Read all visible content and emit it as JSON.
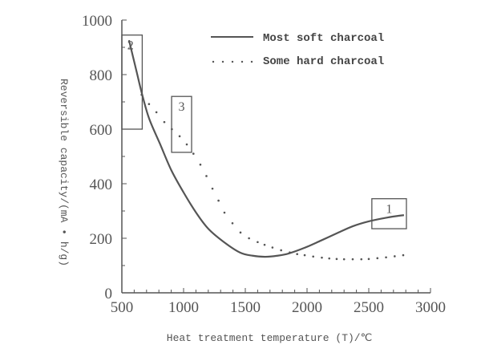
{
  "chart_data": {
    "type": "line",
    "title": "",
    "xlabel": "Heat treatment temperature (T)/℃",
    "ylabel": "Reversible capacity/(mA • h/g)",
    "xlim": [
      500,
      3000
    ],
    "ylim": [
      0,
      1000
    ],
    "x_ticks": [
      500,
      1000,
      1500,
      2000,
      2500,
      3000
    ],
    "y_ticks": [
      0,
      200,
      400,
      600,
      800,
      1000
    ],
    "x_tick_labels": [
      "500",
      "1000",
      "1500",
      "2000",
      "2500",
      "3000"
    ],
    "y_tick_labels": [
      "0",
      "200",
      "400",
      "600",
      "800",
      "1000"
    ],
    "x_minor_step": 100,
    "y_minor_step": 100,
    "grid": false,
    "legend_position": "top-right",
    "series": [
      {
        "name": "Most soft charcoal",
        "style": "solid",
        "x": [
          558,
          620,
          660,
          720,
          810,
          900,
          1000,
          1100,
          1200,
          1330,
          1460,
          1560,
          1660,
          1760,
          1850,
          1980,
          2110,
          2240,
          2370,
          2500,
          2650,
          2785
        ],
        "y": [
          926,
          810,
          735,
          640,
          545,
          450,
          368,
          295,
          235,
          185,
          147,
          136,
          132,
          136,
          144,
          165,
          191,
          218,
          244,
          262,
          276,
          285
        ]
      },
      {
        "name": "Some hard charcoal",
        "style": "dotted",
        "x": [
          660,
          720,
          780,
          844,
          905,
          968,
          1026,
          1080,
          1136,
          1185,
          1234,
          1283,
          1331,
          1396,
          1461,
          1530,
          1600,
          1656,
          1720,
          1790,
          1860,
          1920,
          1981,
          2050,
          2120,
          2180,
          2240,
          2300,
          2370,
          2440,
          2500,
          2570,
          2640,
          2710,
          2779
        ],
        "y": [
          726,
          692,
          662,
          626,
          600,
          574,
          544,
          510,
          470,
          428,
          382,
          338,
          294,
          255,
          221,
          200,
          186,
          176,
          166,
          156,
          148,
          142,
          138,
          133,
          129,
          126,
          124,
          123,
          123,
          123,
          124,
          127,
          130,
          134,
          138
        ]
      }
    ],
    "annotations": [
      {
        "label": "2",
        "x_range": [
          500,
          665
        ],
        "y_range": [
          600,
          945
        ]
      },
      {
        "label": "3",
        "x_range": [
          903,
          1065
        ],
        "y_range": [
          515,
          720
        ]
      },
      {
        "label": "1",
        "x_range": [
          2525,
          2805
        ],
        "y_range": [
          235,
          345
        ]
      }
    ]
  }
}
